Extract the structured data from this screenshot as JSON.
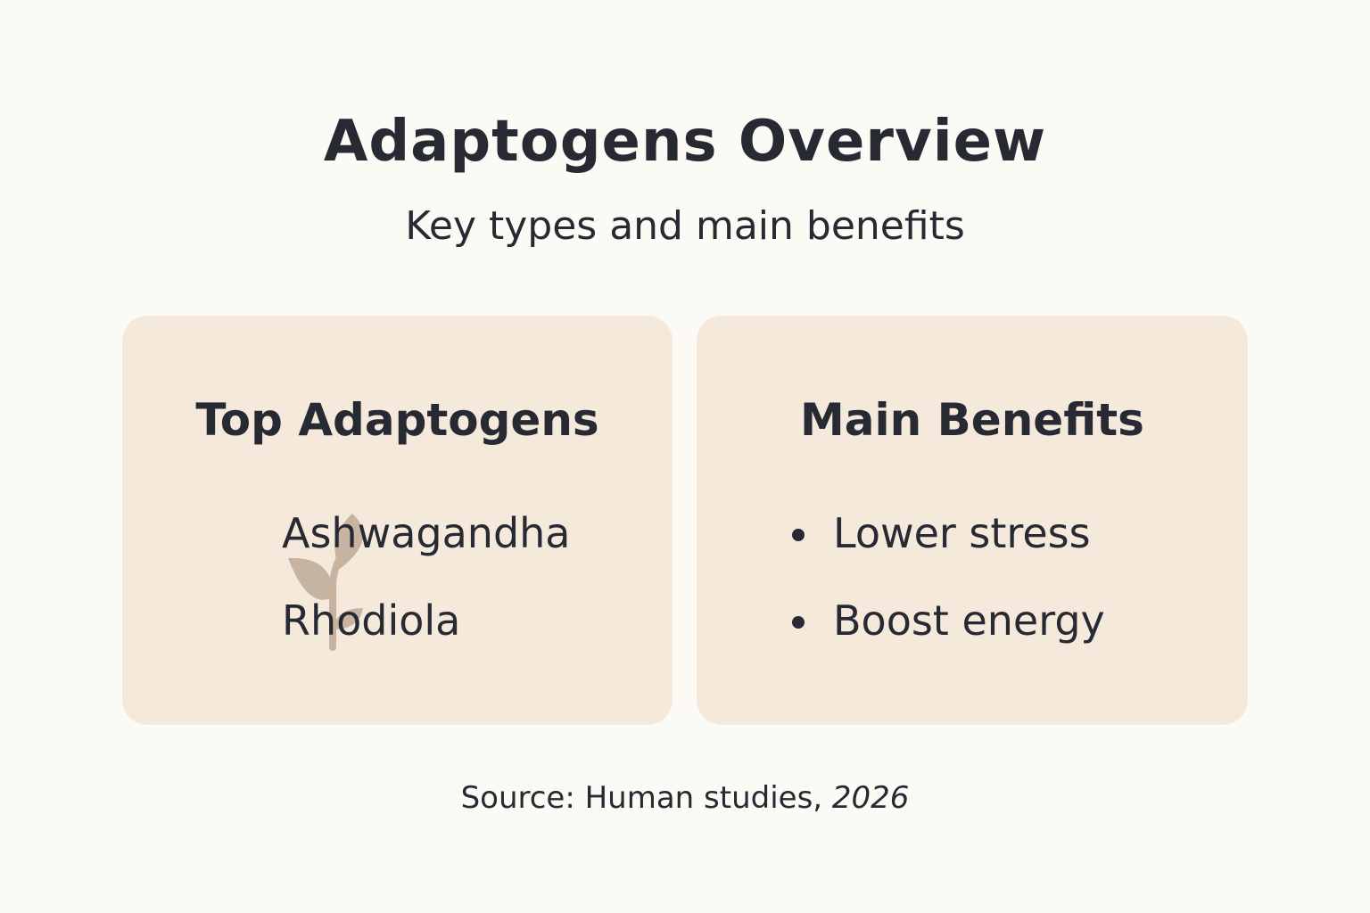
{
  "header": {
    "title": "Adaptogens Overview",
    "subtitle": "Key types and main benefits"
  },
  "cards": [
    {
      "title": "Top Adaptogens",
      "items": [
        "Ashwagandha",
        "Rhodiola"
      ]
    },
    {
      "title": "Main Benefits",
      "items": [
        "Lower stress",
        "Boost energy"
      ]
    }
  ],
  "source": {
    "label": "Source: Human studies,",
    "year": "2026"
  }
}
